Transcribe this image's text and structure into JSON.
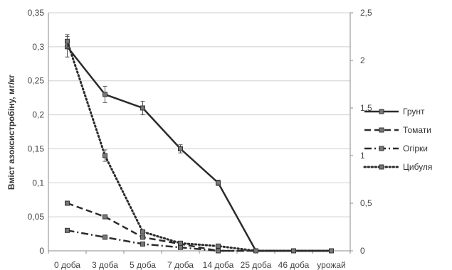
{
  "chart_data": {
    "type": "line",
    "title": "",
    "xlabel": "",
    "ylabel": "Вміст азоксистробіну, мг/кг",
    "categories": [
      "0 доба",
      "3 доба",
      "5 доба",
      "7 доба",
      "14 доба",
      "25 доба",
      "46 доба",
      "урожай"
    ],
    "y_left": {
      "min": 0,
      "max": 0.35,
      "ticks": [
        "0",
        "0,05",
        "0,1",
        "0,15",
        "0,2",
        "0,25",
        "0,3",
        "0,35"
      ]
    },
    "y_right": {
      "min": 0,
      "max": 2.5,
      "ticks": [
        "0",
        "0,5",
        "1",
        "1,5",
        "2",
        "2,5"
      ]
    },
    "grid": true,
    "legend_position": "right",
    "series": [
      {
        "name": "Грунт",
        "axis": "left",
        "dash": "solid",
        "color": "#2b2b2b",
        "values": [
          0.3,
          0.23,
          0.21,
          0.15,
          0.1,
          0,
          0,
          0
        ],
        "errors": [
          0.015,
          0.012,
          0.01,
          0.006,
          0.004,
          0,
          0,
          0
        ]
      },
      {
        "name": "Томати",
        "axis": "left",
        "dash": "dashed",
        "color": "#2b2b2b",
        "values": [
          0.07,
          0.05,
          0.02,
          0.01,
          0,
          0,
          0,
          0
        ]
      },
      {
        "name": "Огірки",
        "axis": "left",
        "dash": "dashdot",
        "color": "#2b2b2b",
        "values": [
          0.03,
          0.02,
          0.01,
          0.005,
          0,
          0,
          0,
          0
        ]
      },
      {
        "name": "Цибуля",
        "axis": "right",
        "dash": "dotted",
        "color": "#2b2b2b",
        "values": [
          2.2,
          1.0,
          0.2,
          0.08,
          0.05,
          0,
          0,
          0
        ],
        "errors": [
          0.07,
          0.06,
          0,
          0,
          0,
          0,
          0,
          0
        ]
      }
    ]
  }
}
